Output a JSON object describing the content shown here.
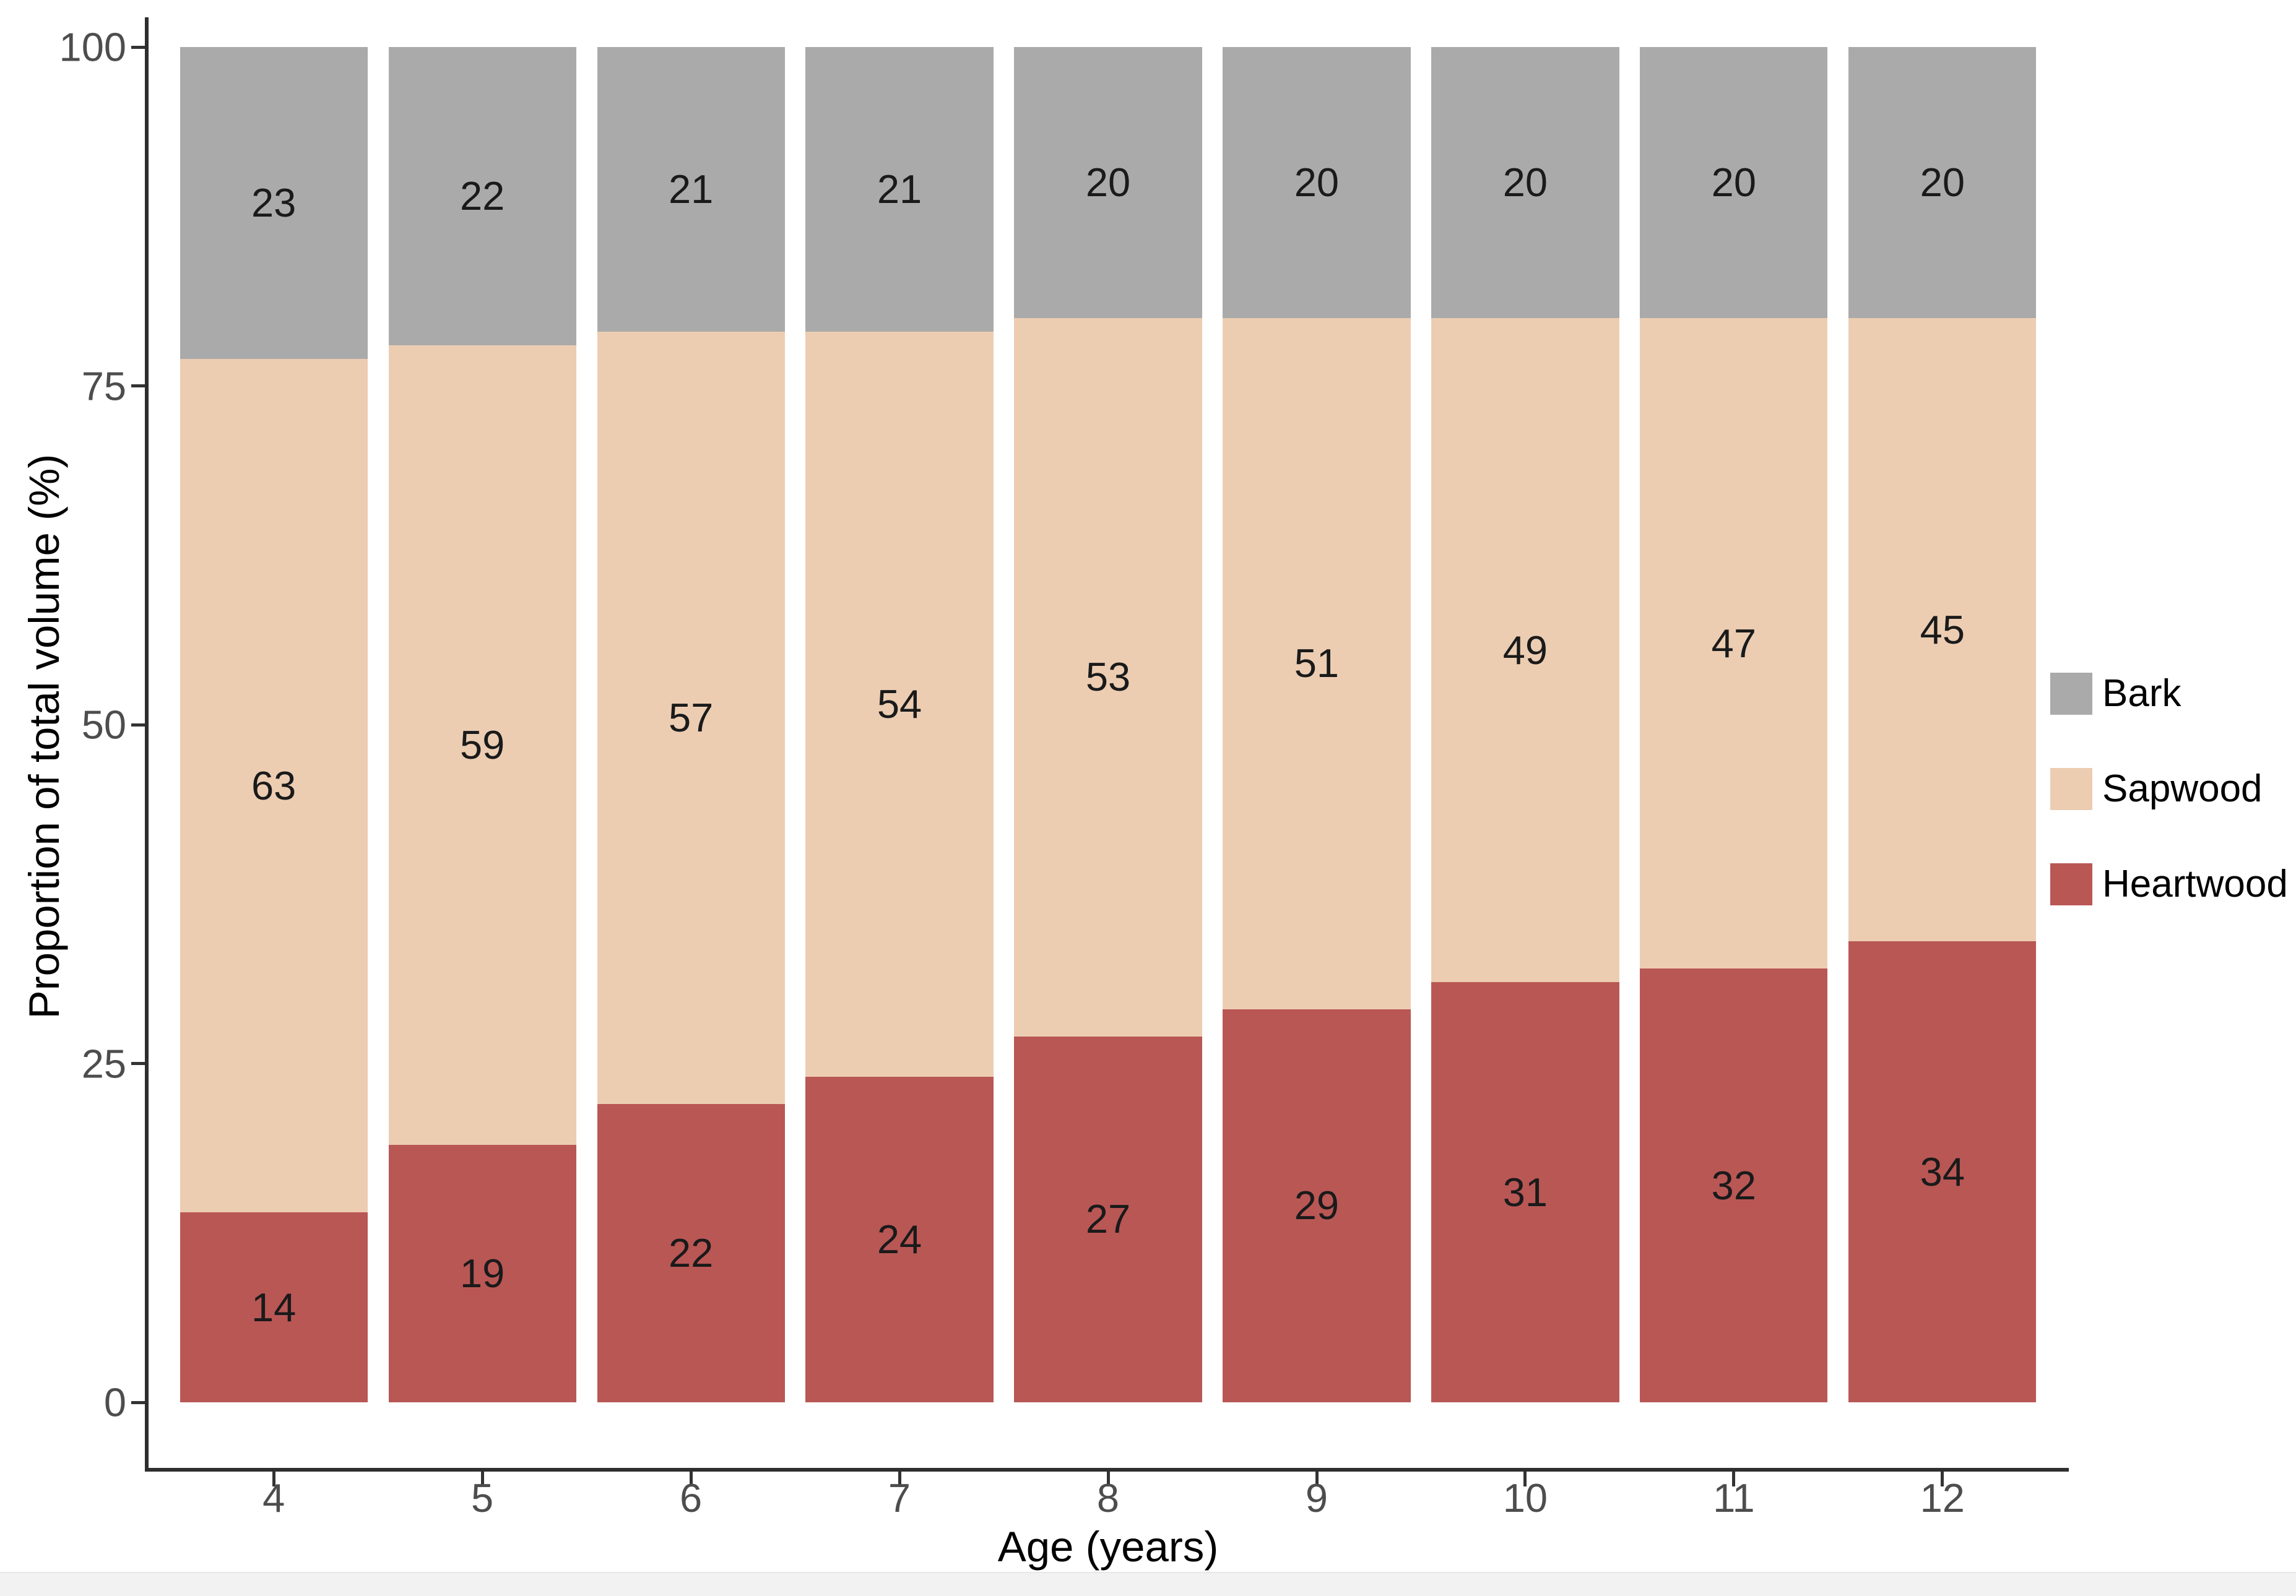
{
  "chart_data": {
    "type": "bar",
    "stacked": true,
    "title": "",
    "xlabel": "Age (years)",
    "ylabel": "Proportion of total volume (%)",
    "categories": [
      "4",
      "5",
      "6",
      "7",
      "8",
      "9",
      "10",
      "11",
      "12"
    ],
    "series": [
      {
        "name": "Heartwood",
        "color": "#B95755",
        "values": [
          14,
          19,
          22,
          24,
          27,
          29,
          31,
          32,
          34
        ]
      },
      {
        "name": "Sapwood",
        "color": "#ECCDB2",
        "values": [
          63,
          59,
          57,
          54,
          53,
          51,
          49,
          47,
          45
        ]
      },
      {
        "name": "Bark",
        "color": "#AAAAAA",
        "values": [
          23,
          22,
          21,
          21,
          20,
          20,
          20,
          20,
          20
        ]
      }
    ],
    "value_labels_shown": true,
    "y_ticks": [
      "0",
      "25",
      "50",
      "75",
      "100"
    ],
    "ylim": [
      0,
      100
    ],
    "grid": false,
    "legend": {
      "position": "right",
      "entries": [
        "Bark",
        "Sapwood",
        "Heartwood"
      ]
    }
  }
}
